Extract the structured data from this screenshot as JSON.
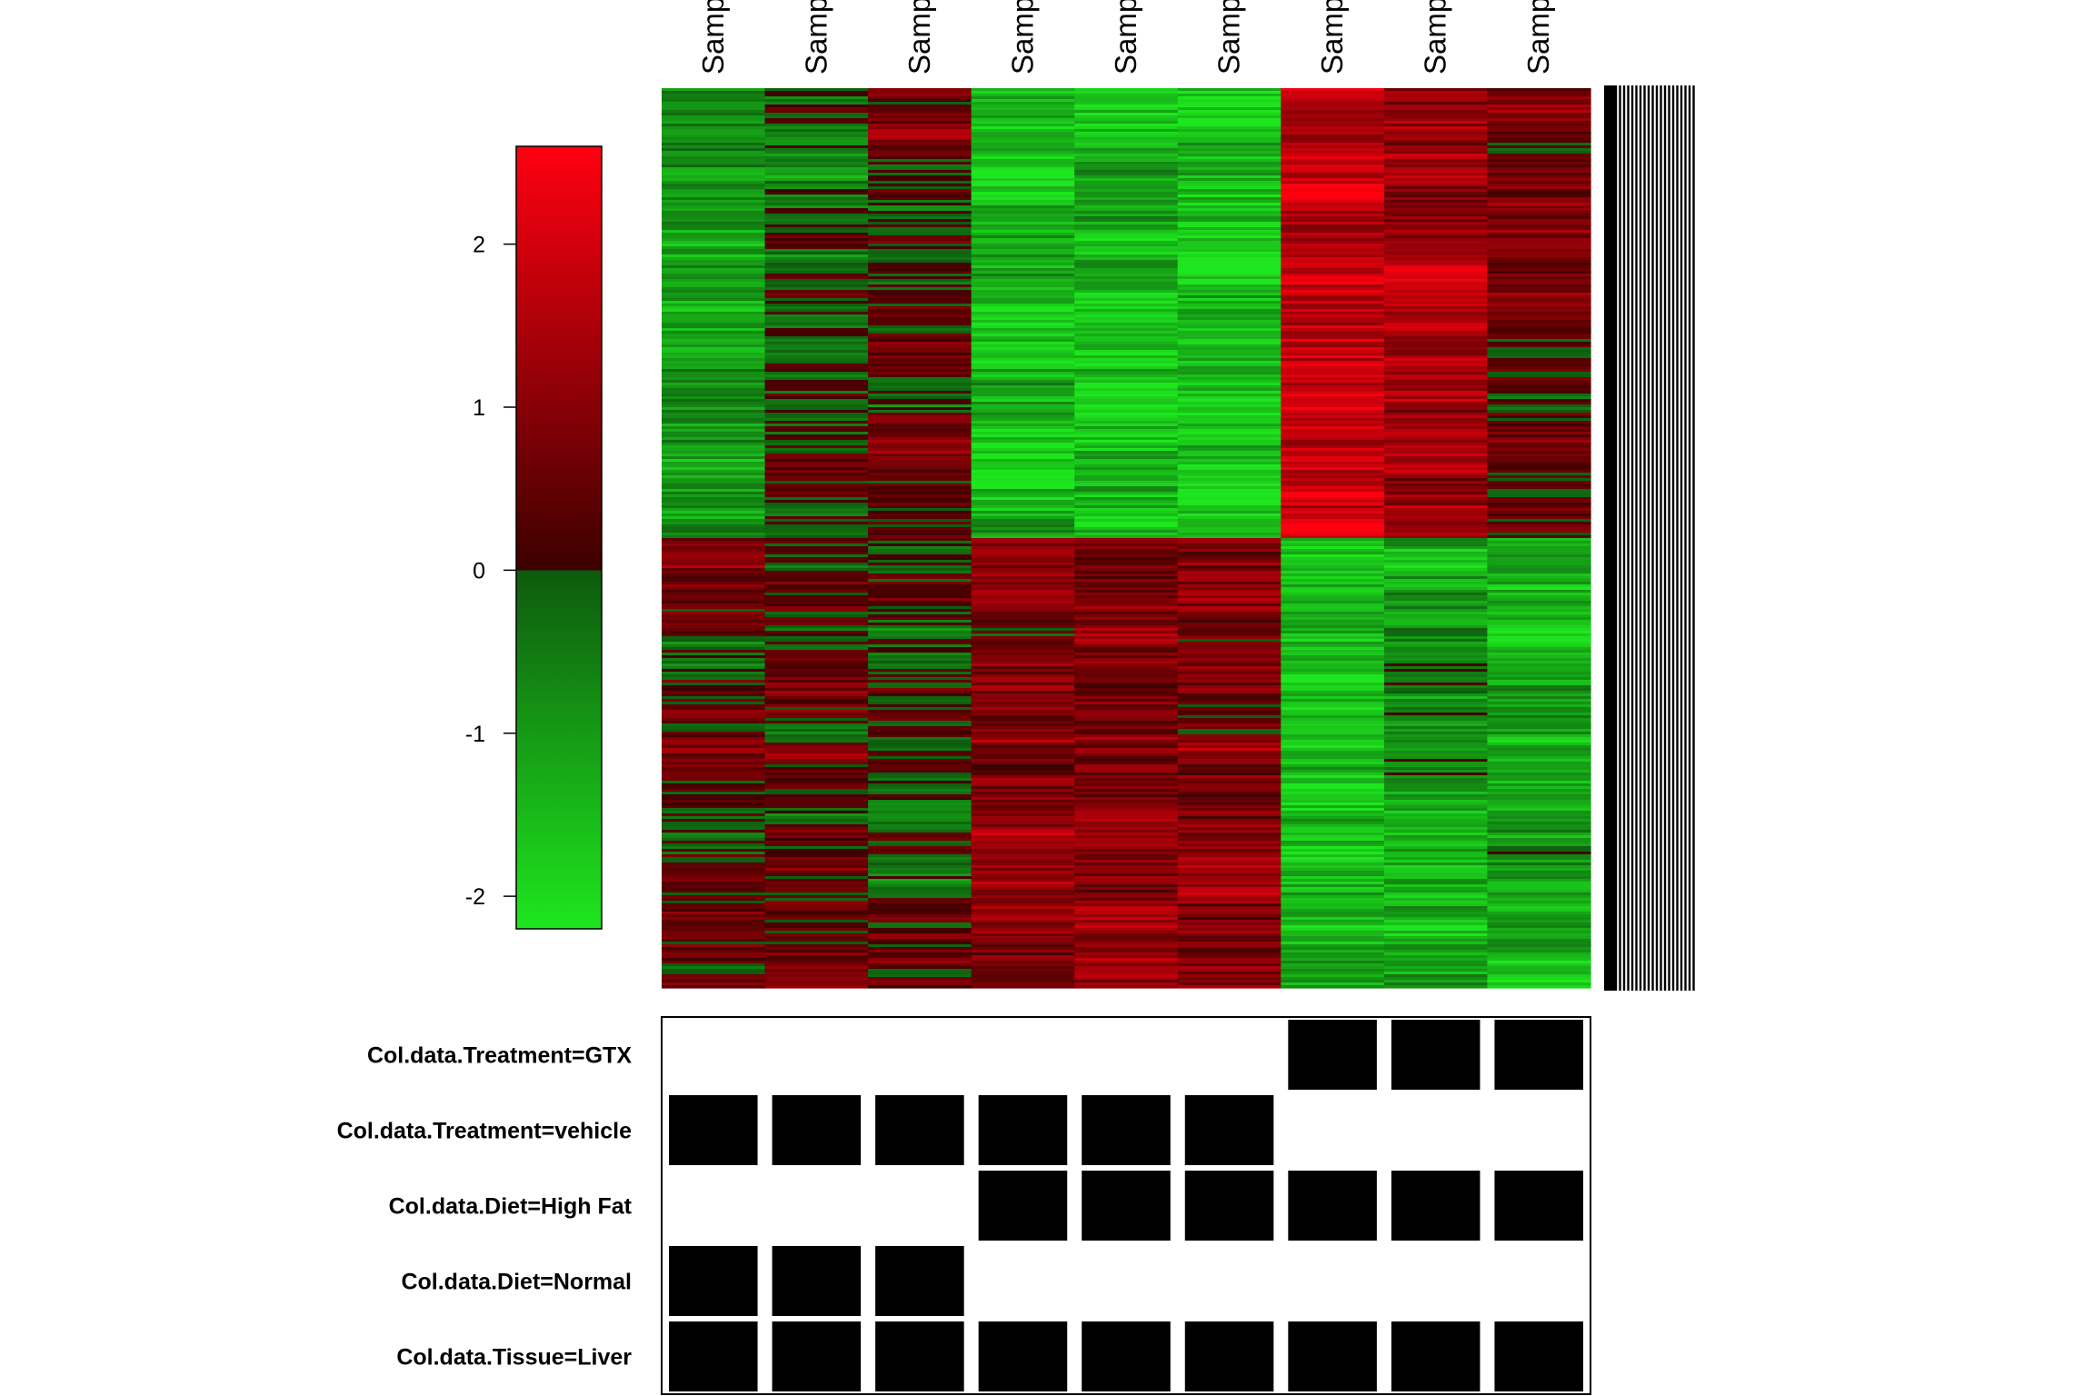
{
  "chart_data": {
    "type": "heatmap",
    "columns": [
      "Samp",
      "Samp",
      "Samp",
      "Samp",
      "Samp",
      "Samp",
      "Samp",
      "Samp",
      "Samp"
    ],
    "row_groups": [
      {
        "name": "",
        "relative_rows": 0.5,
        "mean_zscores": [
          -1.0,
          -0.2,
          0.4,
          -1.5,
          -1.6,
          -1.6,
          1.8,
          1.1,
          0.5
        ]
      },
      {
        "name": "",
        "relative_rows": 0.5,
        "mean_zscores": [
          0.5,
          0.3,
          0.2,
          0.9,
          1.0,
          0.9,
          -1.5,
          -0.9,
          -1.3
        ]
      }
    ],
    "color_scale": {
      "low": "#1ee61e",
      "mid_low": "#0e5a0e",
      "mid_high": "#3c0000",
      "high": "#ff0010",
      "min": -2.2,
      "max": 2.6
    },
    "colorbar_ticks": [
      "2",
      "1",
      "0",
      "-1",
      "-2"
    ],
    "colorbar_tick_values": [
      2,
      1,
      0,
      -1,
      -2
    ],
    "annotation_rows": [
      {
        "label": "Col.data.Treatment=GTX",
        "values": [
          0,
          0,
          0,
          0,
          0,
          0,
          1,
          1,
          1
        ]
      },
      {
        "label": "Col.data.Treatment=vehicle",
        "values": [
          1,
          1,
          1,
          1,
          1,
          1,
          0,
          0,
          0
        ]
      },
      {
        "label": "Col.data.Diet=High Fat",
        "values": [
          0,
          0,
          0,
          1,
          1,
          1,
          1,
          1,
          1
        ]
      },
      {
        "label": "Col.data.Diet=Normal",
        "values": [
          1,
          1,
          1,
          0,
          0,
          0,
          0,
          0,
          0
        ]
      },
      {
        "label": "Col.data.Tissue=Liver",
        "values": [
          1,
          1,
          1,
          1,
          1,
          1,
          1,
          1,
          1
        ]
      }
    ],
    "annotation_fill": "#000000"
  }
}
